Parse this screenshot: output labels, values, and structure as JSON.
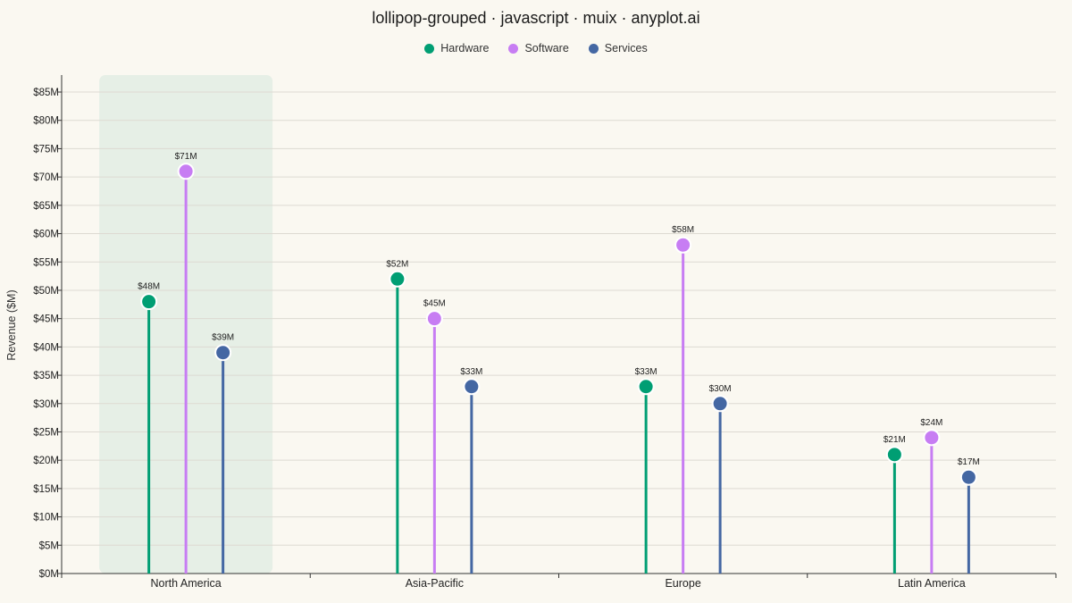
{
  "title": "lollipop-grouped · javascript · muix · anyplot.ai",
  "chart_data": {
    "type": "lollipop-grouped",
    "categories": [
      "North America",
      "Asia-Pacific",
      "Europe",
      "Latin America"
    ],
    "series": [
      {
        "name": "Hardware",
        "color": "#009E73",
        "values": [
          48,
          52,
          33,
          21
        ],
        "labels": [
          "$48M",
          "$52M",
          "$33M",
          "$21M"
        ]
      },
      {
        "name": "Software",
        "color": "#C77DF3",
        "values": [
          71,
          45,
          58,
          24
        ],
        "labels": [
          "$71M",
          "$45M",
          "$58M",
          "$24M"
        ]
      },
      {
        "name": "Services",
        "color": "#4467A3",
        "values": [
          39,
          33,
          30,
          17
        ],
        "labels": [
          "$39M",
          "$33M",
          "$30M",
          "$17M"
        ]
      }
    ],
    "ylabel": "Revenue ($M)",
    "xlabel": "",
    "ylim": [
      0,
      88
    ],
    "yticks": [
      0,
      5,
      10,
      15,
      20,
      25,
      30,
      35,
      40,
      45,
      50,
      55,
      60,
      65,
      70,
      75,
      80,
      85
    ],
    "ytick_labels": [
      "$0M",
      "$5M",
      "$10M",
      "$15M",
      "$20M",
      "$25M",
      "$30M",
      "$35M",
      "$40M",
      "$45M",
      "$50M",
      "$55M",
      "$60M",
      "$65M",
      "$70M",
      "$75M",
      "$80M",
      "$85M"
    ],
    "highlighted_category": "North America",
    "highlight_color": "#E6EFE6",
    "grid": true,
    "legend_position": "top-center"
  }
}
